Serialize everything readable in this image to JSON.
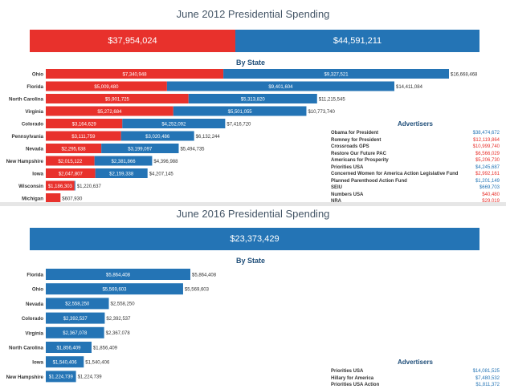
{
  "colors": {
    "red": "#e8312c",
    "blue": "#2474b5",
    "text": "#333333",
    "title": "#445566"
  },
  "panels": [
    {
      "title": "June 2012 Presidential Spending",
      "totals": [
        {
          "label": "$37,954,024",
          "value": 37954024,
          "color": "#e8312c"
        },
        {
          "label": "$44,591,211",
          "value": 44591211,
          "color": "#2474b5"
        }
      ],
      "by_state_label": "By State",
      "advertisers_title": "Advertisers",
      "advertisers": [
        {
          "name": "Obama for President",
          "amount": "$38,474,672",
          "color": "#2474b5"
        },
        {
          "name": "Romney for President",
          "amount": "$12,119,864",
          "color": "#e8312c"
        },
        {
          "name": "Crossroads GPS",
          "amount": "$10,999,740",
          "color": "#e8312c"
        },
        {
          "name": "Restore Our Future PAC",
          "amount": "$6,566,029",
          "color": "#e8312c"
        },
        {
          "name": "Americans for Prosperity",
          "amount": "$5,206,730",
          "color": "#e8312c"
        },
        {
          "name": "Priorities USA",
          "amount": "$4,245,687",
          "color": "#2474b5"
        },
        {
          "name": "Concerned Women for America Action Legislative Fund",
          "amount": "$2,992,161",
          "color": "#e8312c"
        },
        {
          "name": "Planned Parenthood Action Fund",
          "amount": "$1,201,149",
          "color": "#2474b5"
        },
        {
          "name": "SEIU",
          "amount": "$669,703",
          "color": "#2474b5"
        },
        {
          "name": "Numbers USA",
          "amount": "$40,480",
          "color": "#e8312c"
        },
        {
          "name": "NRA",
          "amount": "$29,019",
          "color": "#e8312c"
        }
      ]
    },
    {
      "title": "June 2016 Presidential Spending",
      "totals": [
        {
          "label": "$23,373,429",
          "value": 23373429,
          "color": "#2474b5"
        }
      ],
      "by_state_label": "By State",
      "advertisers_title": "Advertisers",
      "advertisers": [
        {
          "name": "Priorities USA",
          "amount": "$14,081,525",
          "color": "#2474b5"
        },
        {
          "name": "Hillary for America",
          "amount": "$7,480,532",
          "color": "#2474b5"
        },
        {
          "name": "Priorities USA Action",
          "amount": "$1,811,372",
          "color": "#2474b5"
        }
      ]
    }
  ],
  "chart_data": [
    {
      "type": "bar",
      "stacked": true,
      "orientation": "horizontal",
      "title": "By State",
      "xmax": 16668468,
      "categories": [
        "Ohio",
        "Florida",
        "North Carolina",
        "Virginia",
        "Colorado",
        "Pennsylvania",
        "Nevada",
        "New Hampshire",
        "Iowa",
        "Wisconsin",
        "Michigan"
      ],
      "series": [
        {
          "color": "#e8312c",
          "values": [
            7340948,
            5009480,
            5901725,
            5272684,
            3164629,
            3111759,
            2295638,
            2015122,
            2047807,
            1186303,
            607930
          ],
          "labels": [
            "$7,340,948",
            "$5,009,480",
            "$5,901,725",
            "$5,272,684",
            "$3,164,629",
            "$3,111,759",
            "$2,295,638",
            "$2,015,122",
            "$2,047,807",
            "$1,186,303",
            ""
          ]
        },
        {
          "color": "#2474b5",
          "values": [
            9327521,
            9401604,
            5313820,
            5501055,
            4252092,
            3020486,
            3199097,
            2381866,
            2159338,
            34334,
            0
          ],
          "labels": [
            "$9,327,521",
            "$9,401,604",
            "$5,313,820",
            "$5,501,055",
            "$4,252,092",
            "$3,020,486",
            "$3,199,097",
            "$2,381,866",
            "$2,159,338",
            "",
            ""
          ]
        }
      ],
      "totals": [
        "$16,668,468",
        "$14,411,084",
        "$11,215,545",
        "$10,773,740",
        "$7,416,720",
        "$6,132,244",
        "$5,494,735",
        "$4,396,988",
        "$4,207,145",
        "$1,220,637",
        "$607,930"
      ]
    },
    {
      "type": "bar",
      "orientation": "horizontal",
      "title": "By State",
      "xmax": 5864408,
      "categories": [
        "Florida",
        "Ohio",
        "Nevada",
        "Colorado",
        "Virginia",
        "North Carolina",
        "Iowa",
        "New Hampshire"
      ],
      "series": [
        {
          "color": "#2474b5",
          "values": [
            5864408,
            5569603,
            2558250,
            2392537,
            2367078,
            1856409,
            1540406,
            1224739
          ],
          "labels": [
            "$5,864,408",
            "$5,569,603",
            "$2,558,250",
            "$2,392,537",
            "$2,367,078",
            "$1,856,409",
            "$1,540,406",
            "$1,224,739"
          ]
        }
      ],
      "totals": [
        "$5,864,408",
        "$5,569,603",
        "$2,558,250",
        "$2,392,537",
        "$2,367,078",
        "$1,856,409",
        "$1,540,406",
        "$1,224,739"
      ]
    }
  ]
}
